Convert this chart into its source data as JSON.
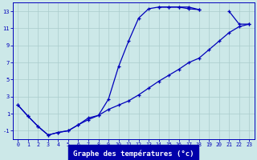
{
  "title": "Graphe des températures (°c)",
  "background_color": "#cce8e8",
  "line_color": "#0000bb",
  "hours": [
    0,
    1,
    2,
    3,
    4,
    5,
    6,
    7,
    8,
    9,
    10,
    11,
    12,
    13,
    14,
    15,
    16,
    17,
    18,
    19,
    20,
    21,
    22,
    23
  ],
  "line1_y": [
    2.0,
    0.7,
    -0.5,
    -1.5,
    -1.2,
    -1.0,
    -0.3,
    0.3,
    0.8,
    1.5,
    2.0,
    2.5,
    3.2,
    4.0,
    4.8,
    5.5,
    6.2,
    7.0,
    7.5,
    8.5,
    9.5,
    10.5,
    11.2,
    11.5
  ],
  "line2_y": [
    2.0,
    0.7,
    -0.5,
    -1.5,
    -1.2,
    -1.0,
    -0.3,
    0.5,
    0.8,
    2.7,
    6.5,
    9.5,
    12.2,
    13.3,
    13.5,
    13.5,
    13.5,
    13.3,
    13.2,
    null,
    null,
    null,
    null,
    null
  ],
  "line3_y": [
    null,
    null,
    null,
    null,
    null,
    null,
    null,
    null,
    null,
    null,
    null,
    null,
    null,
    null,
    13.5,
    13.5,
    13.5,
    13.5,
    13.2,
    null,
    null,
    13.0,
    11.5,
    11.5
  ],
  "xlim": [
    -0.5,
    23.5
  ],
  "ylim": [
    -2.0,
    14.0
  ],
  "yticks": [
    -1,
    1,
    3,
    5,
    7,
    9,
    11,
    13
  ],
  "xticks": [
    0,
    1,
    2,
    3,
    4,
    5,
    6,
    7,
    8,
    9,
    10,
    11,
    12,
    13,
    14,
    15,
    16,
    17,
    18,
    19,
    20,
    21,
    22,
    23
  ],
  "grid_color": "#aacccc",
  "marker": "+",
  "lw": 0.9,
  "ms": 3.5,
  "xlabel_fontsize": 6.5,
  "tick_fontsize": 4.8
}
